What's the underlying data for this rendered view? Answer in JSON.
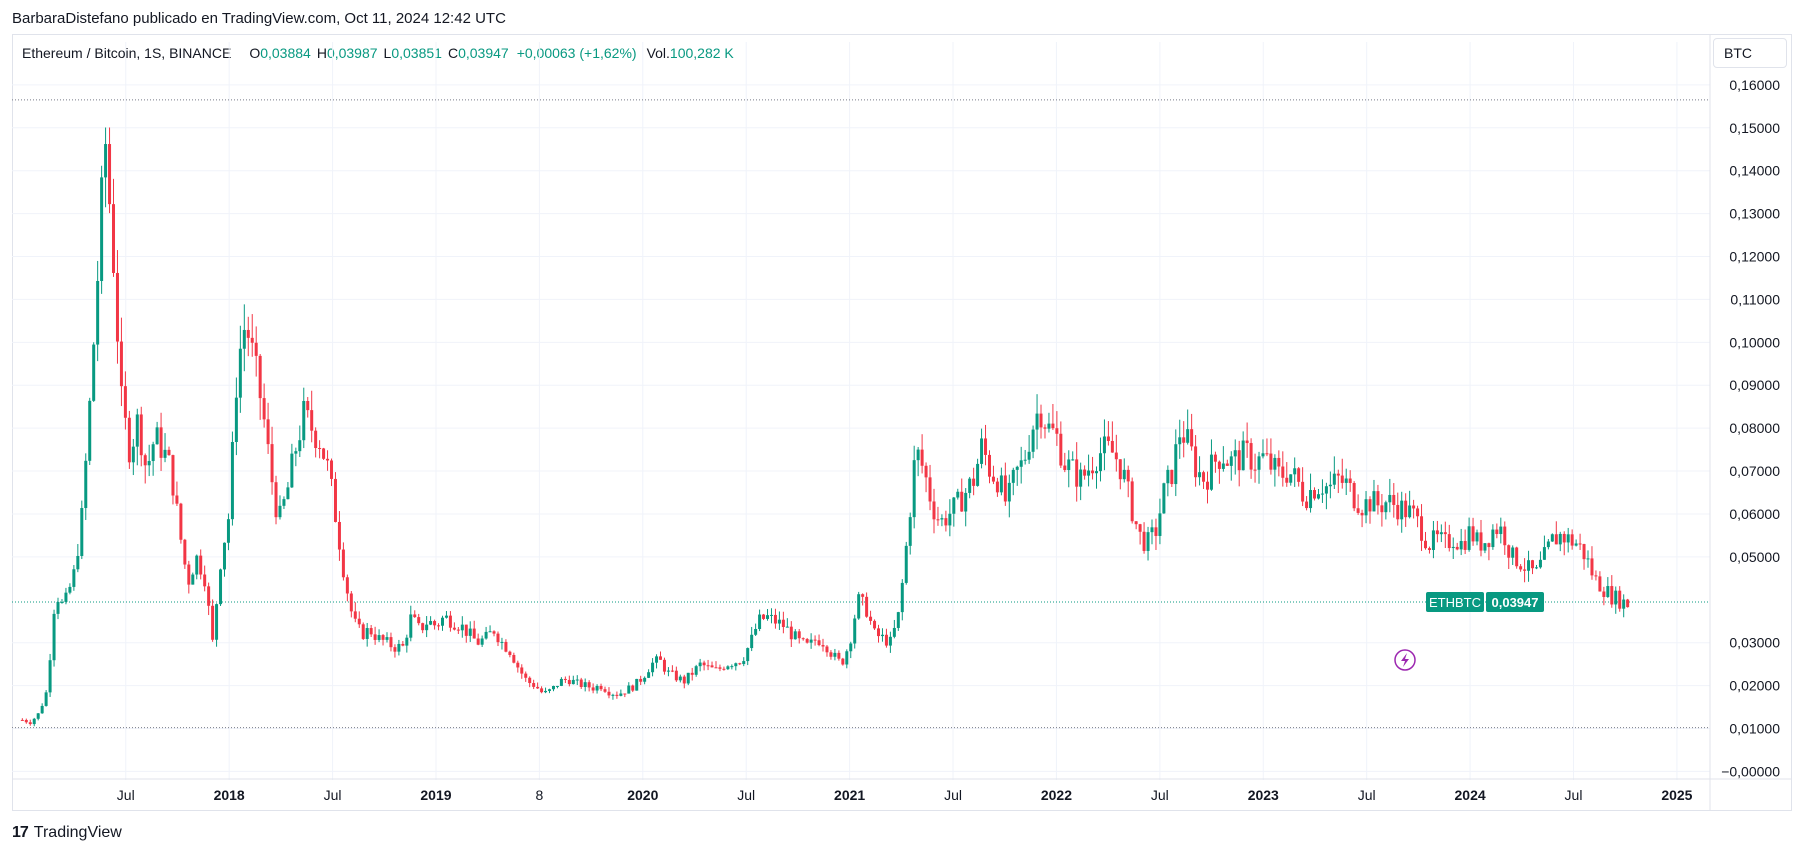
{
  "caption": "BarbaraDistefano publicado en TradingView.com, Oct 11, 2024 12:42 UTC",
  "legend": {
    "symbol": "Ethereum / Bitcoin, 1S, BINANCE",
    "open_label": "O",
    "open": "0,03884",
    "high_label": "H",
    "high": "0,03987",
    "low_label": "L",
    "low": "0,03851",
    "close_label": "C",
    "close": "0,03947",
    "change": "+0,00063 (+1,62%)",
    "vol_label": "Vol.",
    "vol": "100,282 K"
  },
  "currency_button": "BTC",
  "price_tag": {
    "symbol": "ETHBTC",
    "value": "0,03947"
  },
  "footer": {
    "brand": "TradingView",
    "logo_glyph": "17"
  },
  "colors": {
    "up": "#089981",
    "down": "#f23645",
    "grid": "#f0f3fa",
    "accent": "#9c27b0"
  },
  "chart_data": {
    "type": "candlestick",
    "x_ticks": [
      {
        "label": "Jul",
        "bold": false,
        "t": 2017.5
      },
      {
        "label": "2018",
        "bold": true,
        "t": 2018.0
      },
      {
        "label": "Jul",
        "bold": false,
        "t": 2018.5
      },
      {
        "label": "2019",
        "bold": true,
        "t": 2019.0
      },
      {
        "label": "8",
        "bold": false,
        "t": 2019.5
      },
      {
        "label": "2020",
        "bold": true,
        "t": 2020.0
      },
      {
        "label": "Jul",
        "bold": false,
        "t": 2020.5
      },
      {
        "label": "2021",
        "bold": true,
        "t": 2021.0
      },
      {
        "label": "Jul",
        "bold": false,
        "t": 2021.5
      },
      {
        "label": "2022",
        "bold": true,
        "t": 2022.0
      },
      {
        "label": "Jul",
        "bold": false,
        "t": 2022.5
      },
      {
        "label": "2023",
        "bold": true,
        "t": 2023.0
      },
      {
        "label": "Jul",
        "bold": false,
        "t": 2023.5
      },
      {
        "label": "2024",
        "bold": true,
        "t": 2024.0
      },
      {
        "label": "Jul",
        "bold": false,
        "t": 2024.5
      },
      {
        "label": "2025",
        "bold": true,
        "t": 2025.0
      }
    ],
    "y_ticks": [
      {
        "label": "0,16000",
        "v": 0.16
      },
      {
        "label": "0,15000",
        "v": 0.15
      },
      {
        "label": "0,14000",
        "v": 0.14
      },
      {
        "label": "0,13000",
        "v": 0.13
      },
      {
        "label": "0,12000",
        "v": 0.12
      },
      {
        "label": "0,11000",
        "v": 0.11
      },
      {
        "label": "0,10000",
        "v": 0.1
      },
      {
        "label": "0,09000",
        "v": 0.09
      },
      {
        "label": "0,08000",
        "v": 0.08
      },
      {
        "label": "0,07000",
        "v": 0.07
      },
      {
        "label": "0,06000",
        "v": 0.06
      },
      {
        "label": "0,05000",
        "v": 0.05
      },
      {
        "label": "0,03000",
        "v": 0.03
      },
      {
        "label": "0,02000",
        "v": 0.02
      },
      {
        "label": "0,01000",
        "v": 0.01
      },
      {
        "label": "−0,00000",
        "v": 0.0
      }
    ],
    "y_range": [
      -0.002,
      0.163
    ],
    "x_range": [
      2016.95,
      2025.16
    ],
    "high_line": 0.1565,
    "low_line": 0.0102,
    "last_price": 0.03947,
    "series": [
      [
        2017.0,
        0.012
      ],
      [
        2017.04,
        0.0115
      ],
      [
        2017.08,
        0.0135
      ],
      [
        2017.12,
        0.019
      ],
      [
        2017.16,
        0.042
      ],
      [
        2017.2,
        0.038
      ],
      [
        2017.25,
        0.046
      ],
      [
        2017.29,
        0.06
      ],
      [
        2017.33,
        0.088
      ],
      [
        2017.37,
        0.12
      ],
      [
        2017.4,
        0.148
      ],
      [
        2017.44,
        0.12
      ],
      [
        2017.48,
        0.085
      ],
      [
        2017.52,
        0.075
      ],
      [
        2017.56,
        0.082
      ],
      [
        2017.6,
        0.07
      ],
      [
        2017.64,
        0.078
      ],
      [
        2017.68,
        0.075
      ],
      [
        2017.72,
        0.07
      ],
      [
        2017.76,
        0.056
      ],
      [
        2017.8,
        0.044
      ],
      [
        2017.84,
        0.05
      ],
      [
        2017.88,
        0.046
      ],
      [
        2017.92,
        0.03
      ],
      [
        2017.96,
        0.05
      ],
      [
        2018.0,
        0.06
      ],
      [
        2018.04,
        0.095
      ],
      [
        2018.08,
        0.105
      ],
      [
        2018.12,
        0.095
      ],
      [
        2018.16,
        0.085
      ],
      [
        2018.2,
        0.07
      ],
      [
        2018.24,
        0.058
      ],
      [
        2018.28,
        0.065
      ],
      [
        2018.32,
        0.075
      ],
      [
        2018.36,
        0.083
      ],
      [
        2018.4,
        0.08
      ],
      [
        2018.44,
        0.077
      ],
      [
        2018.48,
        0.07
      ],
      [
        2018.52,
        0.058
      ],
      [
        2018.56,
        0.045
      ],
      [
        2018.6,
        0.035
      ],
      [
        2018.64,
        0.032
      ],
      [
        2018.68,
        0.033
      ],
      [
        2018.72,
        0.031
      ],
      [
        2018.76,
        0.03
      ],
      [
        2018.8,
        0.029
      ],
      [
        2018.84,
        0.029
      ],
      [
        2018.88,
        0.036
      ],
      [
        2018.92,
        0.033
      ],
      [
        2018.96,
        0.035
      ],
      [
        2019.0,
        0.034
      ],
      [
        2019.04,
        0.036
      ],
      [
        2019.08,
        0.035
      ],
      [
        2019.12,
        0.034
      ],
      [
        2019.16,
        0.032
      ],
      [
        2019.2,
        0.03
      ],
      [
        2019.24,
        0.031
      ],
      [
        2019.28,
        0.033
      ],
      [
        2019.32,
        0.03
      ],
      [
        2019.36,
        0.028
      ],
      [
        2019.4,
        0.024
      ],
      [
        2019.44,
        0.021
      ],
      [
        2019.48,
        0.02
      ],
      [
        2019.52,
        0.018
      ],
      [
        2019.56,
        0.019
      ],
      [
        2019.6,
        0.021
      ],
      [
        2019.64,
        0.0215
      ],
      [
        2019.68,
        0.0205
      ],
      [
        2019.72,
        0.02
      ],
      [
        2019.76,
        0.0195
      ],
      [
        2019.8,
        0.02
      ],
      [
        2019.84,
        0.0185
      ],
      [
        2019.88,
        0.018
      ],
      [
        2019.92,
        0.019
      ],
      [
        2019.96,
        0.02
      ],
      [
        2020.0,
        0.022
      ],
      [
        2020.04,
        0.025
      ],
      [
        2020.08,
        0.026
      ],
      [
        2020.12,
        0.023
      ],
      [
        2020.16,
        0.022
      ],
      [
        2020.2,
        0.021
      ],
      [
        2020.24,
        0.023
      ],
      [
        2020.28,
        0.025
      ],
      [
        2020.32,
        0.024
      ],
      [
        2020.36,
        0.0235
      ],
      [
        2020.4,
        0.025
      ],
      [
        2020.44,
        0.0255
      ],
      [
        2020.48,
        0.026
      ],
      [
        2020.52,
        0.03
      ],
      [
        2020.56,
        0.035
      ],
      [
        2020.6,
        0.036
      ],
      [
        2020.64,
        0.035
      ],
      [
        2020.68,
        0.034
      ],
      [
        2020.72,
        0.032
      ],
      [
        2020.76,
        0.03
      ],
      [
        2020.8,
        0.029
      ],
      [
        2020.84,
        0.031
      ],
      [
        2020.88,
        0.03
      ],
      [
        2020.92,
        0.027
      ],
      [
        2020.96,
        0.025
      ],
      [
        2021.0,
        0.03
      ],
      [
        2021.04,
        0.04
      ],
      [
        2021.08,
        0.038
      ],
      [
        2021.12,
        0.032
      ],
      [
        2021.16,
        0.031
      ],
      [
        2021.2,
        0.03
      ],
      [
        2021.24,
        0.037
      ],
      [
        2021.28,
        0.055
      ],
      [
        2021.32,
        0.075
      ],
      [
        2021.36,
        0.07
      ],
      [
        2021.4,
        0.062
      ],
      [
        2021.44,
        0.058
      ],
      [
        2021.48,
        0.06
      ],
      [
        2021.52,
        0.062
      ],
      [
        2021.56,
        0.065
      ],
      [
        2021.6,
        0.068
      ],
      [
        2021.64,
        0.076
      ],
      [
        2021.68,
        0.07
      ],
      [
        2021.72,
        0.068
      ],
      [
        2021.76,
        0.062
      ],
      [
        2021.8,
        0.069
      ],
      [
        2021.84,
        0.072
      ],
      [
        2021.88,
        0.08
      ],
      [
        2021.92,
        0.085
      ],
      [
        2021.96,
        0.08
      ],
      [
        2022.0,
        0.078
      ],
      [
        2022.04,
        0.072
      ],
      [
        2022.08,
        0.07
      ],
      [
        2022.12,
        0.068
      ],
      [
        2022.16,
        0.071
      ],
      [
        2022.2,
        0.074
      ],
      [
        2022.24,
        0.075
      ],
      [
        2022.28,
        0.074
      ],
      [
        2022.32,
        0.07
      ],
      [
        2022.36,
        0.062
      ],
      [
        2022.4,
        0.055
      ],
      [
        2022.44,
        0.053
      ],
      [
        2022.48,
        0.056
      ],
      [
        2022.52,
        0.065
      ],
      [
        2022.56,
        0.07
      ],
      [
        2022.6,
        0.08
      ],
      [
        2022.64,
        0.076
      ],
      [
        2022.68,
        0.07
      ],
      [
        2022.72,
        0.068
      ],
      [
        2022.76,
        0.072
      ],
      [
        2022.8,
        0.074
      ],
      [
        2022.84,
        0.072
      ],
      [
        2022.88,
        0.073
      ],
      [
        2022.92,
        0.074
      ],
      [
        2022.96,
        0.072
      ],
      [
        2023.0,
        0.073
      ],
      [
        2023.04,
        0.071
      ],
      [
        2023.08,
        0.069
      ],
      [
        2023.12,
        0.07
      ],
      [
        2023.16,
        0.068
      ],
      [
        2023.2,
        0.064
      ],
      [
        2023.24,
        0.066
      ],
      [
        2023.28,
        0.067
      ],
      [
        2023.32,
        0.066
      ],
      [
        2023.36,
        0.068
      ],
      [
        2023.4,
        0.067
      ],
      [
        2023.44,
        0.064
      ],
      [
        2023.48,
        0.062
      ],
      [
        2023.52,
        0.063
      ],
      [
        2023.56,
        0.062
      ],
      [
        2023.6,
        0.063
      ],
      [
        2023.64,
        0.062
      ],
      [
        2023.68,
        0.061
      ],
      [
        2023.72,
        0.06
      ],
      [
        2023.76,
        0.057
      ],
      [
        2023.8,
        0.053
      ],
      [
        2023.84,
        0.054
      ],
      [
        2023.88,
        0.053
      ],
      [
        2023.92,
        0.0545
      ],
      [
        2023.96,
        0.053
      ],
      [
        2024.0,
        0.056
      ],
      [
        2024.04,
        0.053
      ],
      [
        2024.08,
        0.054
      ],
      [
        2024.12,
        0.057
      ],
      [
        2024.16,
        0.056
      ],
      [
        2024.2,
        0.05
      ],
      [
        2024.24,
        0.049
      ],
      [
        2024.28,
        0.047
      ],
      [
        2024.32,
        0.046
      ],
      [
        2024.36,
        0.05
      ],
      [
        2024.4,
        0.054
      ],
      [
        2024.44,
        0.055
      ],
      [
        2024.48,
        0.054
      ],
      [
        2024.52,
        0.053
      ],
      [
        2024.56,
        0.05
      ],
      [
        2024.6,
        0.045
      ],
      [
        2024.64,
        0.043
      ],
      [
        2024.68,
        0.041
      ],
      [
        2024.72,
        0.04
      ],
      [
        2024.76,
        0.039
      ],
      [
        2024.78,
        0.0395
      ]
    ]
  }
}
